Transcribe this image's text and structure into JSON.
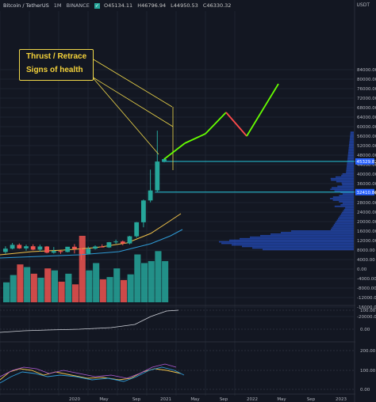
{
  "header": {
    "symbol": "Bitcoin / TetherUS",
    "interval": "1M",
    "exchange": "BINANCE",
    "ohlc": [
      "O45134.11",
      "H46796.94",
      "L44950.53",
      "C46330.32"
    ]
  },
  "annotation": {
    "line1": "Thrust / Retrace",
    "line2": "Signs of health"
  },
  "currency_label": "USDT",
  "price_axis": {
    "ticks": [
      "84000.00",
      "80000.00",
      "76000.00",
      "72000.00",
      "68000.00",
      "64000.00",
      "60000.00",
      "56000.00",
      "52000.00",
      "48000.00",
      "44000.00",
      "40000.00",
      "36000.00",
      "32000.00",
      "28000.00",
      "24000.00",
      "20000.00",
      "16000.00",
      "12000.00",
      "8000.00",
      "4000.00",
      "0.00",
      "-4000.00",
      "-8000.00",
      "-12000.00",
      "-16000.00",
      "-20000.00"
    ],
    "badges": [
      {
        "label": "45329.82",
        "color": "#2962ff"
      },
      {
        "label": "32410.86",
        "color": "#2962ff"
      }
    ]
  },
  "osc_axis": {
    "upper_ticks": [
      "100.00",
      "0.00"
    ],
    "lower_ticks": [
      "200.00",
      "100.00",
      "0.00"
    ]
  },
  "time_axis": [
    "2020",
    "May",
    "Sep",
    "2021",
    "May",
    "Sep",
    "2022",
    "May",
    "Sep",
    "2023"
  ],
  "colors": {
    "up": "#26a69a",
    "down": "#ef5350",
    "bg": "#131722",
    "projection_up": "#66ff00",
    "projection_down": "#ff4b4b",
    "annotation": "#f5d33b",
    "hline": "#26c6da"
  },
  "chart_data": {
    "type": "candlestick",
    "candles": [
      {
        "o": 7200,
        "h": 9600,
        "l": 6400,
        "c": 8600
      },
      {
        "o": 8600,
        "h": 11000,
        "l": 8300,
        "c": 10200
      },
      {
        "o": 10200,
        "h": 10800,
        "l": 8500,
        "c": 8700
      },
      {
        "o": 8700,
        "h": 10300,
        "l": 7700,
        "c": 9600
      },
      {
        "o": 9600,
        "h": 10400,
        "l": 7900,
        "c": 8200
      },
      {
        "o": 8200,
        "h": 10300,
        "l": 7400,
        "c": 9500
      },
      {
        "o": 9500,
        "h": 9700,
        "l": 6600,
        "c": 6900
      },
      {
        "o": 6900,
        "h": 9300,
        "l": 6500,
        "c": 7600
      },
      {
        "o": 7600,
        "h": 7900,
        "l": 6400,
        "c": 7200
      },
      {
        "o": 7200,
        "h": 9200,
        "l": 7000,
        "c": 9400
      },
      {
        "o": 9400,
        "h": 10500,
        "l": 6600,
        "c": 8500
      },
      {
        "o": 8500,
        "h": 8900,
        "l": 3800,
        "c": 6400
      },
      {
        "o": 6400,
        "h": 9500,
        "l": 6200,
        "c": 8600
      },
      {
        "o": 8600,
        "h": 10000,
        "l": 8200,
        "c": 9500
      },
      {
        "o": 9500,
        "h": 10400,
        "l": 9200,
        "c": 9100
      },
      {
        "o": 9100,
        "h": 11400,
        "l": 8900,
        "c": 11300
      },
      {
        "o": 11300,
        "h": 12400,
        "l": 10600,
        "c": 11600
      },
      {
        "o": 11600,
        "h": 12000,
        "l": 10000,
        "c": 10800
      },
      {
        "o": 10800,
        "h": 14000,
        "l": 10400,
        "c": 13800
      },
      {
        "o": 13800,
        "h": 19800,
        "l": 13200,
        "c": 19700
      },
      {
        "o": 19700,
        "h": 29300,
        "l": 17600,
        "c": 28900
      },
      {
        "o": 28900,
        "h": 41900,
        "l": 28100,
        "c": 33100
      },
      {
        "o": 33100,
        "h": 58300,
        "l": 32400,
        "c": 45300
      },
      {
        "o": 45300,
        "h": 46800,
        "l": 44900,
        "c": 46300
      }
    ],
    "projection": [
      [
        46300,
        53000
      ],
      [
        53000,
        57000
      ],
      [
        57000,
        66000
      ],
      [
        66000,
        56000
      ],
      [
        56000,
        78000
      ]
    ],
    "levels": [
      45329.82,
      32410.86
    ],
    "volume_oscillator": [
      6000,
      8200,
      11400,
      10600,
      8600,
      7400,
      10200,
      9600,
      6200,
      8600,
      5400,
      20000,
      9600,
      11800,
      6900,
      7600,
      10200,
      6700,
      8400,
      14400,
      11800,
      12400,
      15400,
      12400
    ]
  }
}
